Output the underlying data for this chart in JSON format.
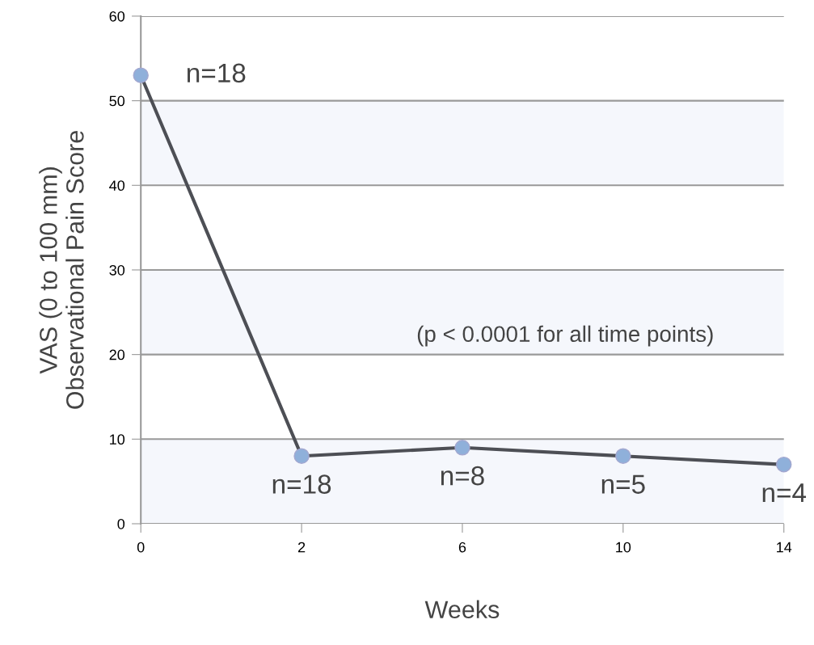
{
  "chart_data": {
    "type": "line",
    "xlabel": "Weeks",
    "ylabel": "VAS (0 to 100 mm)\nObservational Pain Score",
    "categories": [
      "0",
      "2",
      "6",
      "10",
      "14"
    ],
    "series": [
      {
        "color": "#4d4f55",
        "values": [
          53,
          8,
          9,
          8,
          7
        ]
      }
    ],
    "marker": "circle",
    "ylim": [
      0,
      60
    ],
    "yticks": [
      0,
      10,
      20,
      30,
      40,
      50,
      60
    ],
    "grid": "y",
    "bands": [
      {
        "axis": "y",
        "from": 0,
        "to": 10,
        "color": "#f5f7fc"
      },
      {
        "axis": "y",
        "from": 20,
        "to": 30,
        "color": "#f5f7fc"
      },
      {
        "axis": "y",
        "from": 40,
        "to": 50,
        "color": "#f5f7fc"
      }
    ],
    "annotations": [
      {
        "text": "n=18",
        "x": "0",
        "y": 53
      },
      {
        "text": "n=18",
        "x": "2",
        "y": 8
      },
      {
        "text": "n=8",
        "x": "6",
        "y": 9
      },
      {
        "text": "n=5",
        "x": "10",
        "y": 8
      },
      {
        "text": "n=4",
        "x": "14",
        "y": 7
      },
      "(p < 0.0001 for all time points)"
    ]
  }
}
